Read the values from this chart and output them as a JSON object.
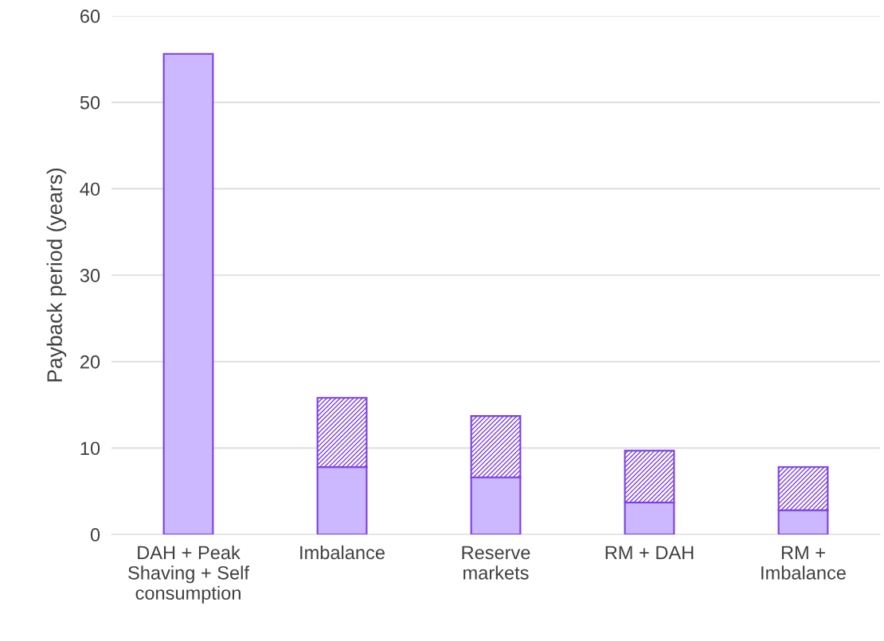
{
  "chart_data": {
    "type": "bar",
    "stacked": true,
    "ylabel": "Payback period (years)",
    "categories": [
      "DAH + Peak\nShaving + Self\nconsumption",
      "Imbalance",
      "Reserve\nmarkets",
      "RM + DAH",
      "RM +\nImbalance"
    ],
    "series": [
      {
        "color": "#cbb8ff",
        "values": [
          55.6,
          7.8,
          6.6,
          3.7,
          2.8
        ]
      },
      {
        "color": "#7b3fe4",
        "values": [
          null,
          8.0,
          7.1,
          6.0,
          5.0
        ]
      }
    ],
    "ylim": [
      0,
      60
    ],
    "yticks": [
      0,
      10,
      20,
      30,
      40,
      50,
      60
    ],
    "grid": "y"
  }
}
